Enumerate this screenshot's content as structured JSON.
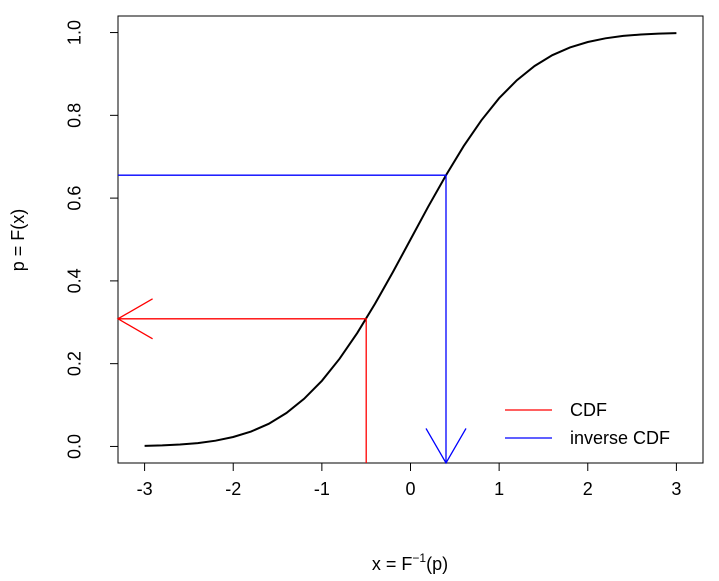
{
  "chart_data": {
    "type": "line",
    "title": "",
    "xlabel": "x = F⁻¹(p)",
    "ylabel": "p = F(x)",
    "xlabel_parts": {
      "base": "x = F",
      "sup": "−1",
      "tail": "(p)"
    },
    "xlim": [
      -3.3,
      3.3
    ],
    "ylim": [
      -0.04,
      1.04
    ],
    "x_ticks": [
      -3,
      -2,
      -1,
      0,
      1,
      2,
      3
    ],
    "y_ticks": [
      0.0,
      0.2,
      0.4,
      0.6,
      0.8,
      1.0
    ],
    "x_tick_labels": [
      "-3",
      "-2",
      "-1",
      "0",
      "1",
      "2",
      "3"
    ],
    "y_tick_labels": [
      "0.0",
      "0.2",
      "0.4",
      "0.6",
      "0.8",
      "1.0"
    ],
    "grid": false,
    "series": [
      {
        "kind": "curve",
        "color": "#000000",
        "x": [
          -3.0,
          -2.8,
          -2.6,
          -2.4,
          -2.2,
          -2.0,
          -1.8,
          -1.6,
          -1.4,
          -1.2,
          -1.0,
          -0.8,
          -0.6,
          -0.4,
          -0.2,
          0.0,
          0.2,
          0.4,
          0.6,
          0.8,
          1.0,
          1.2,
          1.4,
          1.6,
          1.8,
          2.0,
          2.2,
          2.4,
          2.6,
          2.8,
          3.0
        ],
        "y": [
          0.0013,
          0.0026,
          0.0047,
          0.0082,
          0.0139,
          0.0228,
          0.0359,
          0.0548,
          0.0808,
          0.1151,
          0.1587,
          0.2119,
          0.2743,
          0.3446,
          0.4207,
          0.5,
          0.5793,
          0.6554,
          0.7257,
          0.7881,
          0.8413,
          0.8849,
          0.9192,
          0.9452,
          0.9641,
          0.9772,
          0.9861,
          0.9918,
          0.9953,
          0.9974,
          0.9987
        ]
      },
      {
        "name": "CDF",
        "kind": "arrow-path",
        "color": "#ff0000",
        "x": [
          -0.5,
          -0.5,
          -3.3
        ],
        "y": [
          -0.04,
          0.3085,
          0.3085
        ],
        "arrowhead_at": "end"
      },
      {
        "name": "inverse CDF",
        "kind": "arrow-path",
        "color": "#0000ff",
        "x": [
          -3.3,
          0.4,
          0.4
        ],
        "y": [
          0.6554,
          0.6554,
          -0.04
        ],
        "arrowhead_at": "end"
      }
    ],
    "legend": {
      "position": "bottom-right",
      "entries": [
        {
          "label": "CDF",
          "color": "#ff0000"
        },
        {
          "label": "inverse CDF",
          "color": "#0000ff"
        }
      ]
    }
  }
}
